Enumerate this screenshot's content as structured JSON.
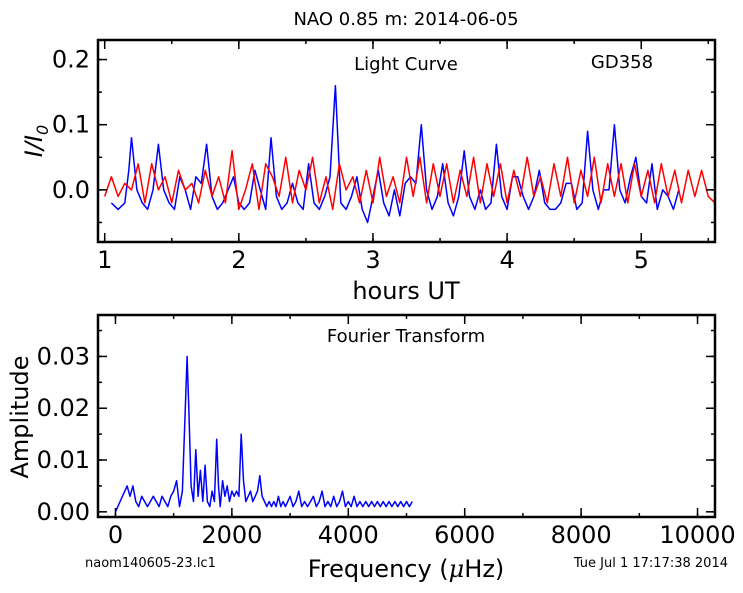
{
  "title": "NAO 0.85 m:  2014-06-05",
  "footer": {
    "filename": "naom140605-23.lc1",
    "timestamp": "Tue Jul  1 17:17:38 2014"
  },
  "colors": {
    "data": "#0000ff",
    "model": "#ff0000",
    "axes": "#000000"
  },
  "chart_data": [
    {
      "type": "line",
      "annotation": "Light Curve",
      "object_label": "GD358",
      "xlabel": "hours UT",
      "ylabel_html": "I/I0",
      "xlim": [
        0.95,
        5.55
      ],
      "ylim": [
        -0.08,
        0.23
      ],
      "xticks": [
        1,
        2,
        3,
        4,
        5
      ],
      "yticks": [
        0.0,
        0.1,
        0.2
      ],
      "yticklabels": [
        "0.0",
        "0.1",
        "0.2"
      ],
      "series": [
        {
          "color": "#0000ff",
          "x": [
            1.05,
            1.1,
            1.15,
            1.18,
            1.2,
            1.24,
            1.28,
            1.32,
            1.36,
            1.4,
            1.44,
            1.48,
            1.52,
            1.56,
            1.6,
            1.64,
            1.68,
            1.72,
            1.76,
            1.8,
            1.84,
            1.88,
            1.92,
            1.96,
            2.0,
            2.04,
            2.08,
            2.12,
            2.16,
            2.2,
            2.24,
            2.28,
            2.32,
            2.36,
            2.4,
            2.44,
            2.48,
            2.52,
            2.56,
            2.6,
            2.64,
            2.68,
            2.72,
            2.76,
            2.8,
            2.84,
            2.88,
            2.92,
            2.96,
            3.0,
            3.04,
            3.08,
            3.12,
            3.16,
            3.2,
            3.24,
            3.28,
            3.32,
            3.36,
            3.4,
            3.44,
            3.48,
            3.52,
            3.56,
            3.6,
            3.64,
            3.68,
            3.72,
            3.76,
            3.8,
            3.84,
            3.88,
            3.92,
            3.96,
            4.0,
            4.04,
            4.08,
            4.12,
            4.16,
            4.2,
            4.24,
            4.28,
            4.32,
            4.36,
            4.4,
            4.44,
            4.48,
            4.52,
            4.56,
            4.6,
            4.64,
            4.68,
            4.72,
            4.76,
            4.8,
            4.84,
            4.88,
            4.92,
            4.96,
            5.0,
            5.04,
            5.08,
            5.12,
            5.16,
            5.2,
            5.24,
            5.28
          ],
          "y": [
            -0.02,
            -0.03,
            -0.02,
            0.03,
            0.08,
            0.0,
            -0.02,
            -0.03,
            0.0,
            0.07,
            0.0,
            -0.02,
            -0.03,
            0.02,
            0.0,
            -0.03,
            0.02,
            0.01,
            0.07,
            -0.01,
            -0.03,
            -0.02,
            0.0,
            0.02,
            -0.02,
            -0.03,
            -0.02,
            0.03,
            0.0,
            -0.03,
            0.08,
            -0.01,
            -0.03,
            -0.02,
            0.01,
            -0.02,
            -0.03,
            0.04,
            -0.02,
            -0.03,
            -0.01,
            0.02,
            0.16,
            -0.02,
            -0.03,
            -0.01,
            0.02,
            -0.03,
            -0.05,
            -0.01,
            0.03,
            -0.02,
            -0.04,
            0.0,
            -0.04,
            0.01,
            0.02,
            0.01,
            0.1,
            0.0,
            -0.03,
            -0.01,
            0.04,
            -0.02,
            -0.04,
            -0.01,
            0.06,
            -0.01,
            -0.03,
            0.0,
            -0.03,
            -0.02,
            0.07,
            -0.01,
            -0.03,
            0.02,
            0.02,
            -0.01,
            -0.03,
            -0.01,
            0.03,
            -0.02,
            -0.03,
            -0.03,
            -0.02,
            0.01,
            0.01,
            -0.03,
            -0.02,
            0.09,
            0.0,
            -0.03,
            0.0,
            0.0,
            0.1,
            0.0,
            -0.02,
            0.02,
            0.05,
            -0.01,
            -0.02,
            0.04,
            -0.03,
            0.0,
            -0.01,
            -0.03,
            0.0
          ]
        },
        {
          "color": "#ff0000",
          "x": [
            1.0,
            1.05,
            1.1,
            1.15,
            1.2,
            1.25,
            1.3,
            1.35,
            1.4,
            1.45,
            1.5,
            1.55,
            1.6,
            1.65,
            1.7,
            1.75,
            1.8,
            1.85,
            1.9,
            1.95,
            2.0,
            2.05,
            2.1,
            2.15,
            2.2,
            2.25,
            2.3,
            2.35,
            2.4,
            2.45,
            2.5,
            2.55,
            2.6,
            2.65,
            2.7,
            2.75,
            2.8,
            2.85,
            2.9,
            2.95,
            3.0,
            3.05,
            3.1,
            3.15,
            3.2,
            3.25,
            3.3,
            3.35,
            3.4,
            3.45,
            3.5,
            3.55,
            3.6,
            3.65,
            3.7,
            3.75,
            3.8,
            3.85,
            3.9,
            3.95,
            4.0,
            4.05,
            4.1,
            4.15,
            4.2,
            4.25,
            4.3,
            4.35,
            4.4,
            4.45,
            4.5,
            4.55,
            4.6,
            4.65,
            4.7,
            4.75,
            4.8,
            4.85,
            4.9,
            4.95,
            5.0,
            5.05,
            5.1,
            5.15,
            5.2,
            5.25,
            5.3,
            5.35,
            5.4,
            5.45,
            5.5,
            5.55
          ],
          "y": [
            -0.01,
            0.02,
            -0.01,
            0.01,
            0.0,
            0.04,
            -0.02,
            0.04,
            0.0,
            0.02,
            -0.02,
            0.03,
            0.0,
            0.01,
            -0.02,
            0.03,
            -0.01,
            0.02,
            -0.02,
            0.06,
            -0.03,
            0.0,
            0.04,
            -0.03,
            0.04,
            0.02,
            -0.01,
            0.05,
            -0.02,
            0.03,
            0.0,
            0.05,
            -0.02,
            0.02,
            -0.03,
            0.04,
            0.0,
            0.02,
            -0.02,
            0.03,
            -0.02,
            0.05,
            -0.01,
            0.02,
            -0.02,
            0.05,
            -0.01,
            0.05,
            -0.02,
            0.04,
            -0.01,
            0.04,
            -0.02,
            0.03,
            -0.01,
            0.05,
            -0.02,
            0.04,
            -0.01,
            0.04,
            -0.02,
            0.03,
            -0.01,
            0.05,
            -0.01,
            0.02,
            -0.02,
            0.04,
            -0.01,
            0.05,
            -0.02,
            0.03,
            -0.01,
            0.05,
            -0.02,
            0.04,
            -0.01,
            0.04,
            -0.02,
            0.04,
            -0.01,
            0.03,
            -0.02,
            0.04,
            -0.01,
            0.03,
            -0.02,
            0.03,
            -0.01,
            0.03,
            -0.01,
            -0.02
          ]
        }
      ]
    },
    {
      "type": "line",
      "annotation": "Fourier Transform",
      "xlabel_html": "Frequency (μHz)",
      "ylabel": "Amplitude",
      "xlim": [
        -300,
        10300
      ],
      "ylim": [
        -0.001,
        0.038
      ],
      "xticks": [
        0,
        2000,
        4000,
        6000,
        8000,
        10000
      ],
      "yticks": [
        0.0,
        0.01,
        0.02,
        0.03
      ],
      "yticklabels": [
        "0.00",
        "0.01",
        "0.02",
        "0.03"
      ],
      "series": [
        {
          "color": "#0000ff",
          "x": [
            0,
            80,
            160,
            200,
            250,
            300,
            350,
            400,
            450,
            500,
            550,
            600,
            650,
            700,
            750,
            800,
            850,
            900,
            950,
            1000,
            1050,
            1100,
            1150,
            1200,
            1230,
            1260,
            1300,
            1340,
            1380,
            1420,
            1460,
            1500,
            1540,
            1580,
            1620,
            1660,
            1700,
            1740,
            1770,
            1800,
            1840,
            1880,
            1920,
            1960,
            2000,
            2040,
            2080,
            2120,
            2160,
            2200,
            2240,
            2280,
            2320,
            2360,
            2400,
            2440,
            2480,
            2520,
            2560,
            2600,
            2640,
            2680,
            2720,
            2760,
            2800,
            2840,
            2880,
            2920,
            2960,
            3000,
            3050,
            3100,
            3150,
            3200,
            3250,
            3300,
            3350,
            3400,
            3450,
            3500,
            3550,
            3600,
            3650,
            3700,
            3750,
            3800,
            3850,
            3900,
            3950,
            4000,
            4050,
            4100,
            4150,
            4200,
            4250,
            4300,
            4350,
            4400,
            4450,
            4500,
            4550,
            4600,
            4650,
            4700,
            4750,
            4800,
            4850,
            4900,
            4950,
            5000,
            5050,
            5100
          ],
          "y": [
            0.0,
            0.002,
            0.004,
            0.005,
            0.003,
            0.005,
            0.002,
            0.001,
            0.003,
            0.002,
            0.001,
            0.002,
            0.003,
            0.002,
            0.001,
            0.003,
            0.002,
            0.001,
            0.003,
            0.004,
            0.006,
            0.001,
            0.004,
            0.02,
            0.03,
            0.02,
            0.005,
            0.002,
            0.012,
            0.003,
            0.008,
            0.002,
            0.009,
            0.002,
            0.001,
            0.004,
            0.002,
            0.014,
            0.005,
            0.001,
            0.006,
            0.003,
            0.005,
            0.002,
            0.004,
            0.003,
            0.004,
            0.003,
            0.015,
            0.006,
            0.002,
            0.003,
            0.004,
            0.002,
            0.003,
            0.004,
            0.007,
            0.003,
            0.002,
            0.001,
            0.002,
            0.001,
            0.002,
            0.001,
            0.003,
            0.001,
            0.002,
            0.001,
            0.002,
            0.003,
            0.001,
            0.002,
            0.004,
            0.001,
            0.002,
            0.001,
            0.002,
            0.003,
            0.001,
            0.002,
            0.004,
            0.001,
            0.002,
            0.001,
            0.003,
            0.001,
            0.002,
            0.004,
            0.001,
            0.002,
            0.001,
            0.003,
            0.001,
            0.002,
            0.001,
            0.002,
            0.001,
            0.002,
            0.001,
            0.002,
            0.001,
            0.002,
            0.001,
            0.002,
            0.001,
            0.002,
            0.001,
            0.002,
            0.001,
            0.002,
            0.001,
            0.002
          ]
        }
      ]
    }
  ]
}
